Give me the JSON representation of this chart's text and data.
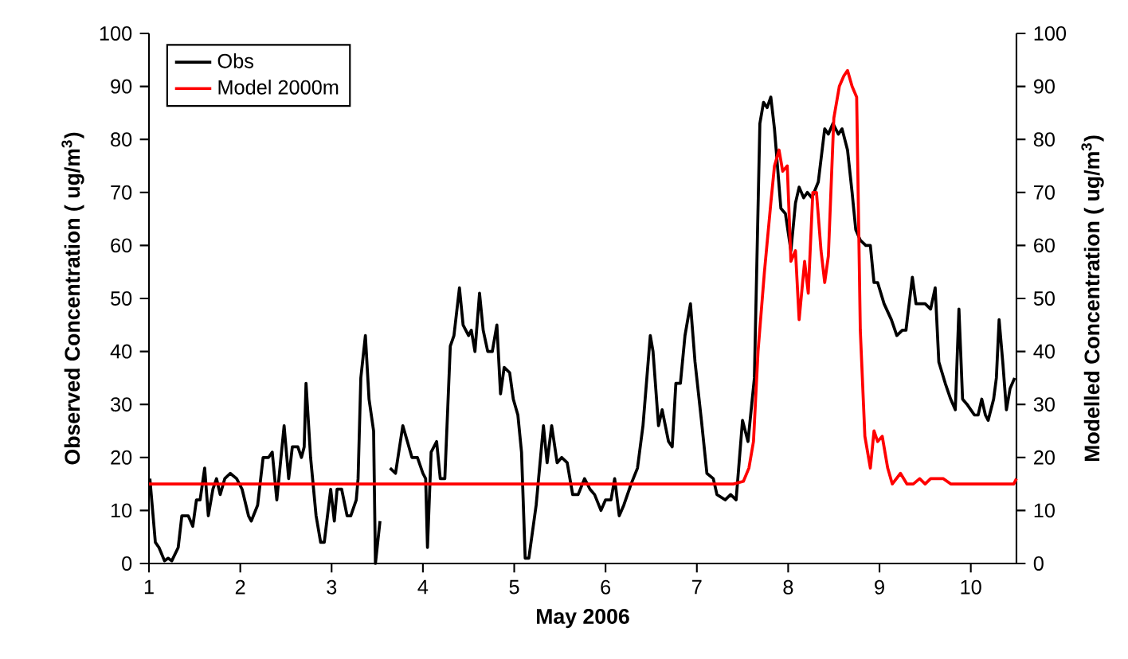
{
  "chart_data": {
    "type": "line",
    "xlabel": "May 2006",
    "ylabel": "Observed Concentration ( ug/m$^{3}$)",
    "y2label": "Modelled Concentration ( ug/m$^{3}$)",
    "xlim": [
      1,
      10.5
    ],
    "xticks": [
      1,
      2,
      3,
      4,
      5,
      6,
      7,
      8,
      9,
      10
    ],
    "ylim": [
      0,
      100
    ],
    "yticks": [
      0,
      10,
      20,
      30,
      40,
      50,
      60,
      70,
      80,
      90,
      100
    ],
    "y2lim": [
      0,
      100
    ],
    "y2ticks": [
      0,
      10,
      20,
      30,
      40,
      50,
      60,
      70,
      80,
      90,
      100
    ],
    "legend": "top left",
    "marker": "none",
    "line_style": "solid",
    "series": [
      {
        "name": "Obs",
        "color": "#000000",
        "axis": "y",
        "x": [
          1.01,
          1.07,
          1.11,
          1.17,
          1.21,
          1.25,
          1.32,
          1.36,
          1.43,
          1.48,
          1.52,
          1.56,
          1.61,
          1.65,
          1.7,
          1.74,
          1.78,
          1.83,
          1.89,
          1.96,
          2.02,
          2.09,
          2.12,
          2.19,
          2.25,
          2.31,
          2.35,
          2.4,
          2.48,
          2.53,
          2.57,
          2.63,
          2.67,
          2.7,
          2.72,
          2.77,
          2.83,
          2.88,
          2.92,
          2.99,
          3.03,
          3.06,
          3.11,
          3.17,
          3.21,
          3.27,
          3.29,
          3.32,
          3.37,
          3.41,
          3.46,
          3.48,
          3.53,
          3.58,
          3.64,
          3.7,
          3.78,
          3.83,
          3.88,
          3.94,
          4.0,
          4.03,
          4.05,
          4.09,
          4.15,
          4.19,
          4.24,
          4.3,
          4.34,
          4.4,
          4.44,
          4.5,
          4.53,
          4.57,
          4.62,
          4.66,
          4.71,
          4.76,
          4.81,
          4.85,
          4.89,
          4.95,
          4.99,
          5.04,
          5.08,
          5.12,
          5.16,
          5.24,
          5.32,
          5.36,
          5.41,
          5.47,
          5.52,
          5.58,
          5.64,
          5.7,
          5.77,
          5.83,
          5.88,
          5.95,
          6.0,
          6.06,
          6.1,
          6.15,
          6.2,
          6.28,
          6.35,
          6.41,
          6.49,
          6.52,
          6.58,
          6.62,
          6.69,
          6.73,
          6.77,
          6.82,
          6.87,
          6.93,
          6.98,
          7.05,
          7.11,
          7.18,
          7.22,
          7.31,
          7.37,
          7.43,
          7.5,
          7.56,
          7.63,
          7.69,
          7.73,
          7.77,
          7.81,
          7.85,
          7.92,
          7.97,
          8.03,
          8.08,
          8.12,
          8.17,
          8.21,
          8.26,
          8.33,
          8.4,
          8.44,
          8.49,
          8.55,
          8.59,
          8.65,
          8.7,
          8.74,
          8.79,
          8.85,
          8.9,
          8.94,
          8.98,
          9.05,
          9.13,
          9.19,
          9.25,
          9.29,
          9.36,
          9.4,
          9.46,
          9.5,
          9.56,
          9.61,
          9.65,
          9.72,
          9.78,
          9.83,
          9.87,
          9.91,
          9.96,
          10.0,
          10.04,
          10.08,
          10.12,
          10.16,
          10.19,
          10.25,
          10.28,
          10.31,
          10.35,
          10.39,
          10.43,
          10.48
        ],
        "values": [
          16,
          4,
          3,
          0.5,
          1,
          0.5,
          3,
          9,
          9,
          7,
          12,
          12,
          18,
          9,
          14,
          16,
          13,
          16,
          17,
          16,
          14,
          9,
          8,
          11,
          20,
          20,
          21,
          12,
          26,
          16,
          22,
          22,
          20,
          22,
          34,
          20,
          9,
          4,
          4,
          14,
          8,
          14,
          14,
          9,
          9,
          12,
          16,
          35,
          43,
          31,
          25,
          0,
          8,
          null,
          18,
          17,
          26,
          23,
          20,
          20,
          17,
          16,
          3,
          21,
          23,
          16,
          16,
          41,
          43,
          52,
          45,
          43,
          44,
          40,
          51,
          44,
          40,
          40,
          45,
          32,
          37,
          36,
          31,
          28,
          21,
          1,
          1,
          11,
          26,
          19,
          26,
          19,
          20,
          19,
          13,
          13,
          16,
          14,
          13,
          10,
          12,
          12,
          16,
          9,
          11,
          15,
          18,
          26,
          43,
          40,
          26,
          29,
          23,
          22,
          34,
          34,
          43,
          49,
          38,
          27,
          17,
          16,
          13,
          12,
          13,
          12,
          27,
          23,
          35,
          83,
          87,
          86,
          88,
          82,
          67,
          66,
          59,
          68,
          71,
          69,
          70,
          69,
          72,
          82,
          81,
          83,
          81,
          82,
          78,
          70,
          63,
          61,
          60,
          60,
          53,
          53,
          49,
          46,
          43,
          44,
          44,
          54,
          49,
          49,
          49,
          48,
          52,
          38,
          34,
          31,
          29,
          48,
          31,
          30,
          29,
          28,
          28,
          31,
          28,
          27,
          31,
          35,
          46,
          38,
          29,
          33,
          35
        ]
      },
      {
        "name": "Model 2000m",
        "color": "#ff0000",
        "axis": "y2",
        "x": [
          1.0,
          7.4,
          7.51,
          7.57,
          7.62,
          7.67,
          7.74,
          7.81,
          7.85,
          7.9,
          7.94,
          7.99,
          8.03,
          8.08,
          8.12,
          8.18,
          8.22,
          8.27,
          8.31,
          8.36,
          8.4,
          8.44,
          8.5,
          8.56,
          8.61,
          8.65,
          8.7,
          8.75,
          8.79,
          8.84,
          8.9,
          8.94,
          8.98,
          9.03,
          9.09,
          9.14,
          9.23,
          9.3,
          9.37,
          9.44,
          9.5,
          9.56,
          9.64,
          9.7,
          9.78,
          10.47,
          10.5
        ],
        "values": [
          15,
          15,
          15.5,
          18,
          23,
          40,
          55,
          68,
          75,
          78,
          74,
          75,
          57,
          59,
          46,
          57,
          51,
          70,
          70,
          59,
          53,
          58,
          84,
          90,
          92,
          93,
          90,
          88,
          44,
          24,
          18,
          25,
          23,
          24,
          18,
          15,
          17,
          15,
          15,
          16,
          15,
          16,
          16,
          16,
          15,
          15,
          16
        ]
      }
    ]
  }
}
